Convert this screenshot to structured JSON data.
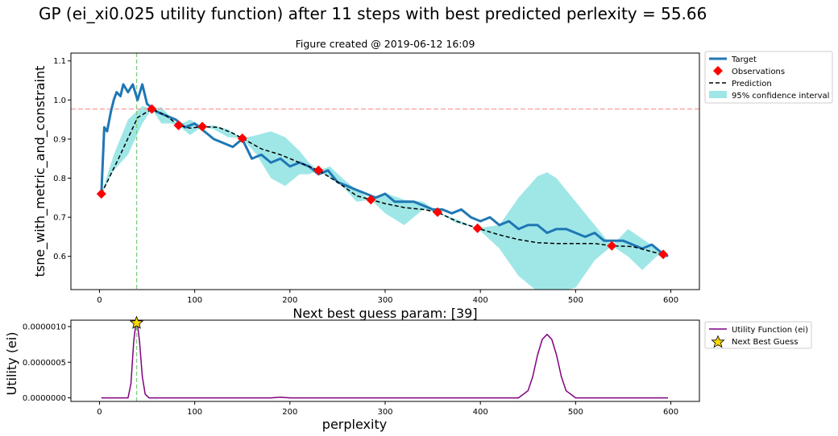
{
  "figure": {
    "suptitle": "GP (ei_xi0.025 utility function) after 11 steps with best predicted perlexity = 55.66"
  },
  "chart_data": [
    {
      "type": "line",
      "title": "Figure created @ 2019-06-12 16:09",
      "xlabel": "",
      "ylabel": "tsne_with_metric_and_constraint",
      "xlim": [
        -30,
        630
      ],
      "ylim": [
        0.515,
        1.12
      ],
      "xticks": [
        "0",
        "100",
        "200",
        "300",
        "400",
        "500",
        "600"
      ],
      "yticks": [
        "0.6",
        "0.7",
        "0.8",
        "0.9",
        "1.0",
        "1.1"
      ],
      "grid": false,
      "legend": "outside-right",
      "reference_lines": {
        "vertical_x": 39,
        "horizontal_y": 0.977
      },
      "series": [
        {
          "name": "Target",
          "style": "noisy solid line",
          "color": "#1f77b4",
          "x": [
            2,
            5,
            8,
            12,
            15,
            18,
            22,
            25,
            30,
            35,
            40,
            45,
            50,
            55,
            60,
            70,
            80,
            90,
            100,
            110,
            120,
            130,
            140,
            150,
            160,
            170,
            180,
            190,
            200,
            210,
            220,
            230,
            240,
            250,
            260,
            270,
            280,
            290,
            300,
            310,
            320,
            330,
            340,
            350,
            360,
            370,
            380,
            390,
            400,
            410,
            420,
            430,
            440,
            450,
            460,
            470,
            480,
            490,
            500,
            510,
            520,
            530,
            540,
            550,
            560,
            570,
            580,
            590,
            597
          ],
          "y": [
            0.76,
            0.93,
            0.92,
            0.97,
            1.0,
            1.02,
            1.01,
            1.04,
            1.02,
            1.04,
            1.0,
            1.04,
            0.99,
            0.98,
            0.97,
            0.96,
            0.95,
            0.93,
            0.94,
            0.92,
            0.9,
            0.89,
            0.88,
            0.9,
            0.85,
            0.86,
            0.84,
            0.85,
            0.83,
            0.84,
            0.83,
            0.81,
            0.82,
            0.79,
            0.78,
            0.77,
            0.76,
            0.75,
            0.76,
            0.74,
            0.74,
            0.74,
            0.73,
            0.72,
            0.72,
            0.71,
            0.72,
            0.7,
            0.69,
            0.7,
            0.68,
            0.69,
            0.67,
            0.68,
            0.68,
            0.66,
            0.67,
            0.67,
            0.66,
            0.65,
            0.66,
            0.64,
            0.64,
            0.64,
            0.63,
            0.62,
            0.63,
            0.61,
            0.6
          ]
        },
        {
          "name": "Observations",
          "style": "red diamond markers",
          "color": "#ff0000",
          "x": [
            2,
            55,
            83,
            108,
            150,
            230,
            285,
            355,
            397,
            538,
            592
          ],
          "y": [
            0.76,
            0.977,
            0.935,
            0.932,
            0.902,
            0.82,
            0.745,
            0.713,
            0.672,
            0.627,
            0.605
          ]
        },
        {
          "name": "Prediction",
          "style": "black dashed line",
          "color": "#000000",
          "x": [
            2,
            20,
            40,
            55,
            70,
            83,
            95,
            108,
            125,
            140,
            150,
            170,
            190,
            210,
            230,
            250,
            270,
            285,
            300,
            320,
            340,
            355,
            375,
            397,
            420,
            440,
            460,
            480,
            500,
            520,
            538,
            560,
            580,
            592
          ],
          "y": [
            0.76,
            0.85,
            0.955,
            0.977,
            0.96,
            0.935,
            0.928,
            0.932,
            0.93,
            0.915,
            0.902,
            0.875,
            0.86,
            0.84,
            0.82,
            0.79,
            0.755,
            0.745,
            0.735,
            0.725,
            0.72,
            0.713,
            0.69,
            0.672,
            0.655,
            0.643,
            0.635,
            0.633,
            0.633,
            0.633,
            0.627,
            0.625,
            0.612,
            0.605
          ]
        },
        {
          "name": "95% confidence interval",
          "style": "filled band",
          "color": "#40d0d0",
          "x": [
            2,
            15,
            30,
            45,
            55,
            65,
            75,
            83,
            95,
            108,
            120,
            135,
            150,
            165,
            180,
            195,
            210,
            220,
            230,
            242,
            255,
            270,
            285,
            300,
            320,
            340,
            355,
            375,
            397,
            420,
            440,
            460,
            470,
            480,
            500,
            520,
            538,
            555,
            570,
            585,
            592
          ],
          "upper": [
            0.76,
            0.86,
            0.95,
            0.985,
            0.977,
            0.982,
            0.955,
            0.935,
            0.95,
            0.932,
            0.935,
            0.925,
            0.902,
            0.91,
            0.92,
            0.905,
            0.87,
            0.84,
            0.82,
            0.83,
            0.8,
            0.77,
            0.745,
            0.762,
            0.745,
            0.74,
            0.713,
            0.695,
            0.672,
            0.68,
            0.75,
            0.805,
            0.815,
            0.8,
            0.74,
            0.68,
            0.627,
            0.67,
            0.645,
            0.62,
            0.605
          ],
          "lower": [
            0.76,
            0.82,
            0.86,
            0.94,
            0.977,
            0.94,
            0.94,
            0.935,
            0.91,
            0.932,
            0.925,
            0.905,
            0.902,
            0.86,
            0.8,
            0.78,
            0.81,
            0.81,
            0.82,
            0.8,
            0.78,
            0.74,
            0.745,
            0.71,
            0.68,
            0.72,
            0.713,
            0.685,
            0.672,
            0.62,
            0.55,
            0.51,
            0.51,
            0.51,
            0.52,
            0.59,
            0.627,
            0.6,
            0.565,
            0.6,
            0.605
          ]
        }
      ]
    },
    {
      "type": "line",
      "title": "Next best guess param: [39]",
      "xlabel": "perplexity",
      "ylabel": "Utility (ei)",
      "xlim": [
        -30,
        630
      ],
      "ylim": [
        -5e-08,
        1.09e-06
      ],
      "xticks": [
        "0",
        "100",
        "200",
        "300",
        "400",
        "500",
        "600"
      ],
      "yticks": [
        "0.0000000",
        "0.0000005",
        "0.0000010"
      ],
      "grid": false,
      "legend": "outside-right",
      "reference_lines": {
        "vertical_x": 39
      },
      "series": [
        {
          "name": "Utility Function (ei)",
          "color": "#800080",
          "x": [
            2,
            30,
            33,
            36,
            38,
            39,
            40,
            42,
            45,
            48,
            52,
            100,
            180,
            190,
            200,
            300,
            400,
            440,
            450,
            455,
            460,
            465,
            470,
            475,
            480,
            485,
            490,
            500,
            597
          ],
          "y": [
            0,
            0,
            2e-07,
            8e-07,
            1.02e-06,
            1.05e-06,
            1.02e-06,
            8e-07,
            3e-07,
            5e-08,
            0,
            0,
            0,
            1e-08,
            0,
            0,
            0,
            0,
            1e-07,
            3e-07,
            6e-07,
            8.2e-07,
            8.9e-07,
            8.2e-07,
            6e-07,
            3e-07,
            1e-07,
            0,
            0
          ]
        },
        {
          "name": "Next Best Guess",
          "style": "gold star marker",
          "color": "#ffd700",
          "x": [
            39
          ],
          "y": [
            1.05e-06
          ]
        }
      ]
    }
  ]
}
